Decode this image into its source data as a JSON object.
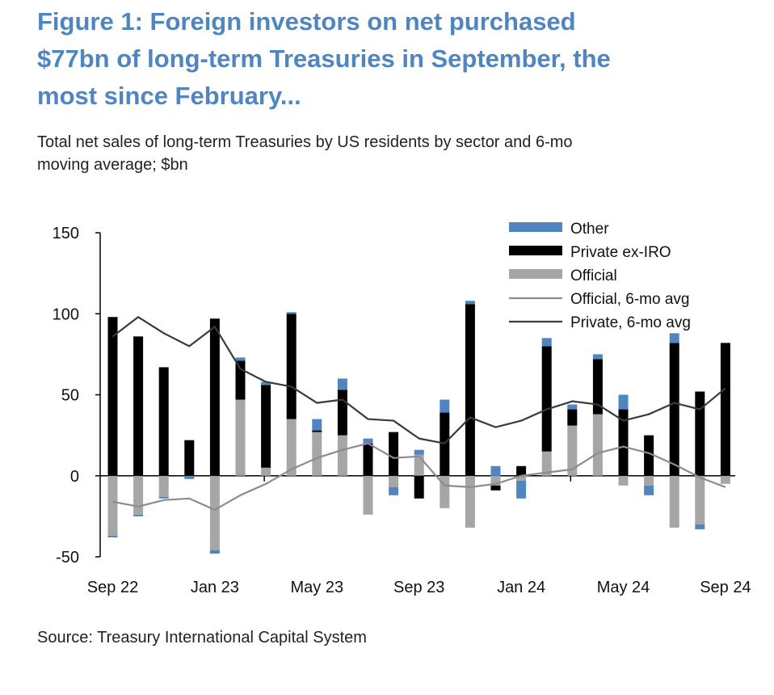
{
  "title": {
    "line1": "Figure 1: Foreign investors on net purchased",
    "line2": "$77bn of long-term Treasuries in September, the",
    "line3": "most since February..."
  },
  "subtitle": {
    "line1": "Total net sales of long-term Treasuries by US residents by sector and 6-mo",
    "line2": "moving average; $bn"
  },
  "source": "Source: Treasury International Capital System",
  "colors": {
    "other": "#4f86c1",
    "private": "#000000",
    "official": "#a6a6a6",
    "official_avg": "#8c8c8c",
    "private_avg": "#3a3a3a",
    "title": "#4f86c1"
  },
  "chart_data": {
    "type": "bar",
    "stacked": true,
    "ylim": [
      -50,
      150
    ],
    "yticks": [
      -50,
      0,
      50,
      100,
      150
    ],
    "x_tick_labels": [
      "Sep 22",
      "Jan 23",
      "May 23",
      "Sep 23",
      "Jan 24",
      "May 24",
      "Sep 24"
    ],
    "categories": [
      "Sep 22",
      "Oct 22",
      "Nov 22",
      "Dec 22",
      "Jan 23",
      "Feb 23",
      "Mar 23",
      "Apr 23",
      "May 23",
      "Jun 23",
      "Jul 23",
      "Aug 23",
      "Sep 23",
      "Oct 23",
      "Nov 23",
      "Dec 23",
      "Jan 24",
      "Feb 24",
      "Mar 24",
      "Apr 24",
      "May 24",
      "Jun 24",
      "Jul 24",
      "Aug 24",
      "Sep 24",
      "Oct 24"
    ],
    "series": [
      {
        "name": "Official",
        "kind": "bar",
        "values": [
          -37,
          -24,
          -13,
          0,
          -46,
          47,
          5,
          35,
          27,
          25,
          -24,
          -7,
          13,
          -20,
          -32,
          -6,
          -3,
          15,
          31,
          38,
          -6,
          -6,
          -32,
          -30,
          -5,
          0
        ]
      },
      {
        "name": "Private ex-IRO",
        "kind": "bar",
        "values": [
          98,
          86,
          67,
          22,
          97,
          24,
          51,
          65,
          1,
          28,
          20,
          27,
          -14,
          39,
          106,
          -3,
          6,
          65,
          10,
          34,
          41,
          25,
          82,
          52,
          82,
          0
        ]
      },
      {
        "name": "Other",
        "kind": "bar",
        "values": [
          -1,
          -1,
          -1,
          -2,
          -2,
          2,
          2,
          1,
          7,
          7,
          3,
          -5,
          3,
          8,
          2,
          6,
          -11,
          5,
          3,
          3,
          9,
          -6,
          6,
          -3,
          0,
          0
        ]
      },
      {
        "name": "Official, 6-mo avg",
        "kind": "line",
        "values": [
          -16,
          -19,
          -15,
          -14,
          -21,
          -12,
          -5,
          4,
          11,
          16,
          20,
          11,
          12,
          -6,
          -7,
          -5,
          0,
          2,
          4,
          14,
          18,
          14,
          7,
          -1,
          -7,
          null
        ]
      },
      {
        "name": "Private, 6-mo avg",
        "kind": "line",
        "values": [
          86,
          98,
          88,
          80,
          92,
          66,
          58,
          55,
          45,
          47,
          35,
          34,
          23,
          20,
          36,
          30,
          34,
          41,
          46,
          44,
          34,
          38,
          45,
          41,
          54,
          null
        ]
      }
    ],
    "legend": [
      "Other",
      "Private ex-IRO",
      "Official",
      "Official, 6-mo avg",
      "Private, 6-mo avg"
    ],
    "legend_position": "top-right"
  }
}
